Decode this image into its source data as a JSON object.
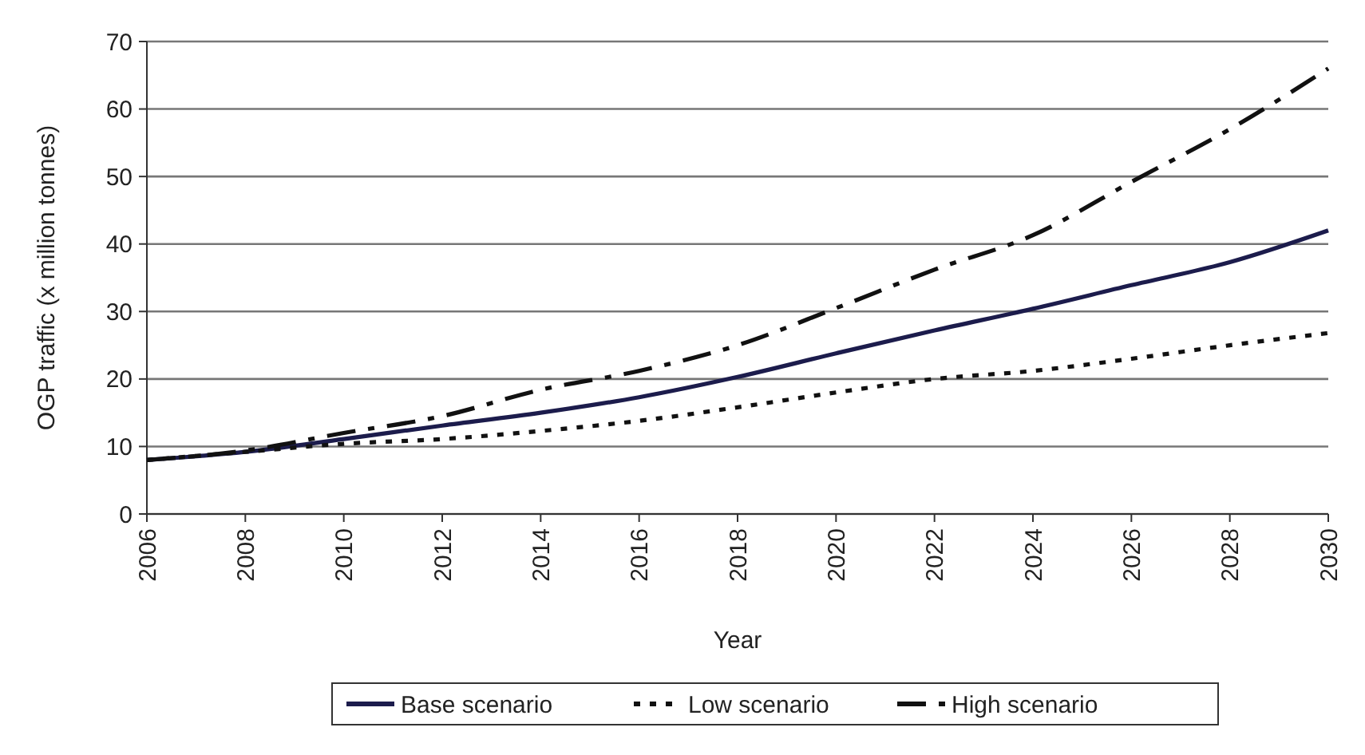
{
  "chart_data": {
    "type": "line",
    "xlabel": "Year",
    "ylabel": "OGP traffic (x million tonnes)",
    "x": [
      2006,
      2008,
      2010,
      2012,
      2014,
      2016,
      2018,
      2020,
      2022,
      2024,
      2026,
      2028,
      2030
    ],
    "series": [
      {
        "name": "Base scenario",
        "color": "#1c1c4c",
        "line_style": "solid",
        "values": [
          8,
          9.2,
          11.1,
          13.1,
          15,
          17.3,
          20.3,
          23.8,
          27.2,
          30.4,
          33.9,
          37.3,
          42
        ]
      },
      {
        "name": "Low scenario",
        "color": "#111111",
        "line_style": "dotted",
        "values": [
          8,
          9.2,
          10.4,
          11.1,
          12.3,
          13.8,
          15.8,
          18,
          20,
          21.2,
          23,
          25,
          26.8
        ]
      },
      {
        "name": "High scenario",
        "color": "#111111",
        "line_style": "dashdot",
        "values": [
          8,
          9.4,
          12,
          14.5,
          18.4,
          21.2,
          25,
          30.5,
          36.2,
          41.3,
          49.2,
          57,
          66
        ]
      }
    ],
    "xlim": [
      2006,
      2030
    ],
    "xticks": [
      2006,
      2008,
      2010,
      2012,
      2014,
      2016,
      2018,
      2020,
      2022,
      2024,
      2026,
      2028,
      2030
    ],
    "ylim": [
      0,
      70
    ],
    "yticks": [
      0,
      10,
      20,
      30,
      40,
      50,
      60,
      70
    ],
    "grid": "y",
    "legend": "bottom",
    "marker": "none"
  }
}
